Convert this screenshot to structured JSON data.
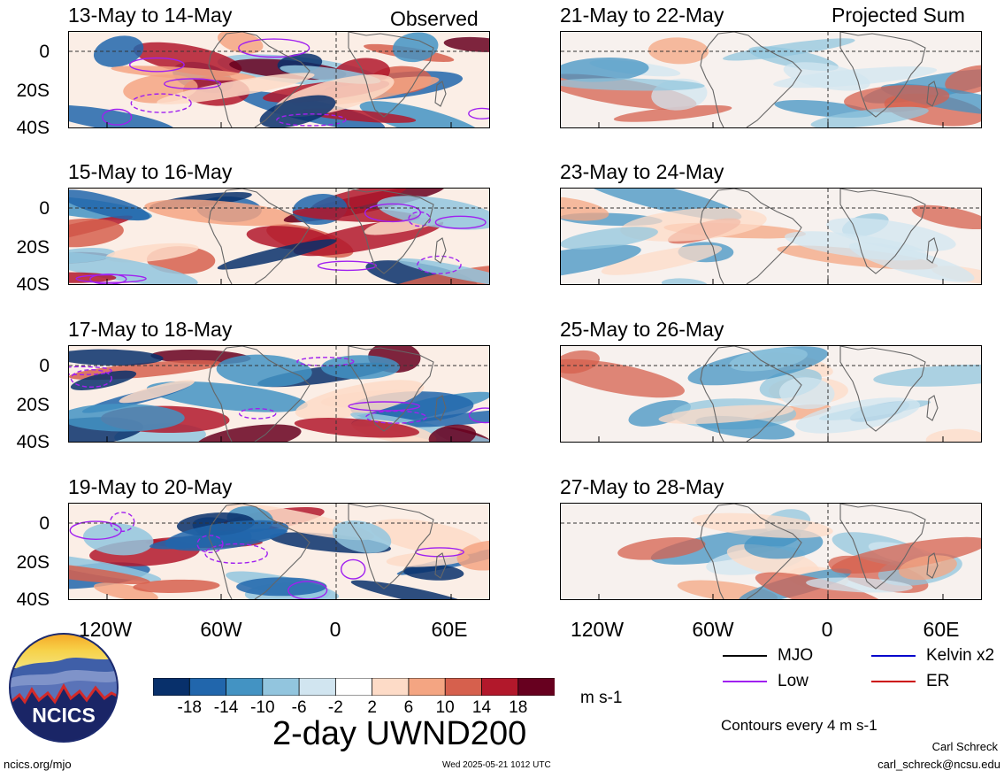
{
  "header": {
    "observed_label": "Observed",
    "projected_label": "Projected Sum"
  },
  "panels": [
    {
      "title": "13-May to 14-May"
    },
    {
      "title": "15-May to 16-May"
    },
    {
      "title": "17-May to 18-May"
    },
    {
      "title": "19-May to 20-May"
    },
    {
      "title": "21-May to 22-May"
    },
    {
      "title": "23-May to 24-May"
    },
    {
      "title": "25-May to 26-May"
    },
    {
      "title": "27-May to 28-May"
    }
  ],
  "axes": {
    "lat_ticks": [
      "0",
      "20S",
      "40S"
    ],
    "lon_ticks": [
      "120W",
      "60W",
      "0",
      "60E"
    ]
  },
  "colorbar": {
    "ticks": [
      "-18",
      "-14",
      "-10",
      "-6",
      "-2",
      "2",
      "6",
      "10",
      "14",
      "18"
    ],
    "colors": [
      "#08306b",
      "#2166ac",
      "#4393c3",
      "#92c5de",
      "#d1e5f0",
      "#ffffff",
      "#fddbc7",
      "#f4a582",
      "#d6604d",
      "#b2182b",
      "#67001f"
    ],
    "units": "m s-1"
  },
  "title": "2-day UWND200",
  "legend": {
    "items": [
      {
        "label": "MJO",
        "color": "#000000"
      },
      {
        "label": "Kelvin x2",
        "color": "#0000cc"
      },
      {
        "label": "Low",
        "color": "#a020f0"
      },
      {
        "label": "ER",
        "color": "#cc0000"
      }
    ],
    "contours_note": "Contours every 4 m s-1"
  },
  "logo": {
    "text": "NCICS"
  },
  "footer": {
    "website": "ncics.org/mjo",
    "timestamp": "Wed 2025-05-21 1012 UTC",
    "author": "Carl Schreck",
    "email": "carl_schreck@ncsu.edu"
  }
}
